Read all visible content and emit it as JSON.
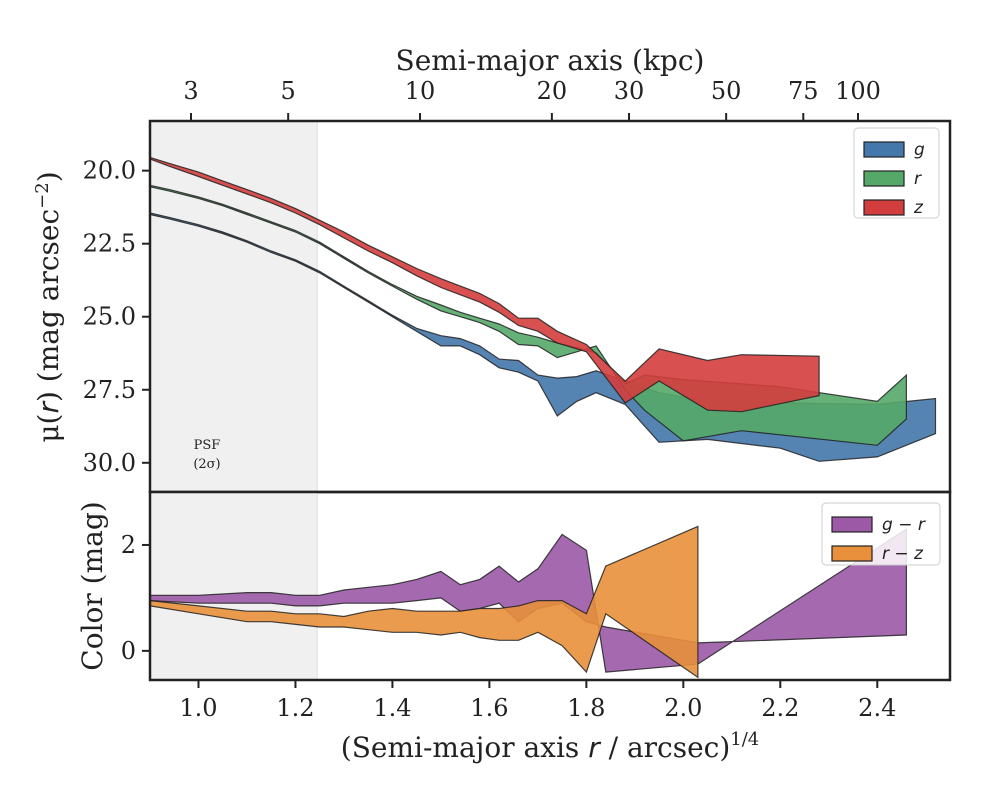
{
  "chart_data": [
    {
      "type": "area",
      "panel": "surface-brightness",
      "ylabel_parts": [
        "μ(",
        "r",
        ") (mag arcsec",
        "−2",
        ")"
      ],
      "xlabel_top": "Semi-major axis (kpc)",
      "ylim": [
        31.0,
        18.3
      ],
      "y_inverted": true,
      "xlim": [
        0.9,
        2.55
      ],
      "yticks": [
        "20.0",
        "22.5",
        "25.0",
        "27.5",
        "30.0"
      ],
      "ytick_values": [
        20.0,
        22.5,
        25.0,
        27.5,
        30.0
      ],
      "top_xticks": [
        "3",
        "5",
        "10",
        "20",
        "30",
        "50",
        "75",
        "100"
      ],
      "top_xtick_values": [
        3,
        5,
        10,
        20,
        30,
        50,
        75,
        100
      ],
      "psf_shade_upto": 1.245,
      "psf_label": [
        "PSF",
        "(2σ)"
      ],
      "legend": {
        "placement": "top-right",
        "entries": [
          "g",
          "r",
          "z"
        ]
      },
      "series": [
        {
          "name": "g",
          "color": "#4477aa",
          "upper": [
            [
              0.9,
              21.45
            ],
            [
              0.94,
              21.6
            ],
            [
              1.0,
              21.85
            ],
            [
              1.05,
              22.1
            ],
            [
              1.1,
              22.4
            ],
            [
              1.15,
              22.75
            ],
            [
              1.2,
              23.05
            ],
            [
              1.25,
              23.45
            ],
            [
              1.3,
              23.95
            ],
            [
              1.35,
              24.45
            ],
            [
              1.4,
              24.95
            ],
            [
              1.45,
              25.4
            ],
            [
              1.5,
              25.65
            ],
            [
              1.54,
              25.75
            ],
            [
              1.58,
              26.0
            ],
            [
              1.62,
              26.45
            ],
            [
              1.66,
              26.5
            ],
            [
              1.7,
              27.0
            ],
            [
              1.74,
              27.1
            ],
            [
              1.78,
              27.05
            ],
            [
              1.82,
              26.85
            ],
            [
              1.88,
              27.2
            ],
            [
              1.95,
              27.6
            ],
            [
              2.05,
              27.9
            ],
            [
              2.2,
              27.95
            ],
            [
              2.4,
              28.0
            ],
            [
              2.52,
              27.8
            ]
          ],
          "lower": [
            [
              0.9,
              21.5
            ],
            [
              0.94,
              21.65
            ],
            [
              1.0,
              21.9
            ],
            [
              1.05,
              22.15
            ],
            [
              1.1,
              22.45
            ],
            [
              1.15,
              22.8
            ],
            [
              1.2,
              23.1
            ],
            [
              1.25,
              23.5
            ],
            [
              1.3,
              24.0
            ],
            [
              1.35,
              24.5
            ],
            [
              1.4,
              25.0
            ],
            [
              1.45,
              25.5
            ],
            [
              1.5,
              26.0
            ],
            [
              1.54,
              26.0
            ],
            [
              1.58,
              26.3
            ],
            [
              1.62,
              26.75
            ],
            [
              1.66,
              26.9
            ],
            [
              1.7,
              27.2
            ],
            [
              1.74,
              28.4
            ],
            [
              1.78,
              27.9
            ],
            [
              1.82,
              27.6
            ],
            [
              1.88,
              28.0
            ],
            [
              1.95,
              29.3
            ],
            [
              2.05,
              29.2
            ],
            [
              2.2,
              29.5
            ],
            [
              2.28,
              29.95
            ],
            [
              2.4,
              29.8
            ],
            [
              2.52,
              29.0
            ]
          ]
        },
        {
          "name": "r",
          "color": "#55a868",
          "upper": [
            [
              0.9,
              20.5
            ],
            [
              0.94,
              20.65
            ],
            [
              1.0,
              20.9
            ],
            [
              1.05,
              21.15
            ],
            [
              1.1,
              21.45
            ],
            [
              1.15,
              21.75
            ],
            [
              1.2,
              22.05
            ],
            [
              1.25,
              22.45
            ],
            [
              1.3,
              22.95
            ],
            [
              1.35,
              23.45
            ],
            [
              1.4,
              23.9
            ],
            [
              1.45,
              24.3
            ],
            [
              1.5,
              24.6
            ],
            [
              1.54,
              24.85
            ],
            [
              1.58,
              25.05
            ],
            [
              1.62,
              25.25
            ],
            [
              1.66,
              25.55
            ],
            [
              1.7,
              25.7
            ],
            [
              1.74,
              25.9
            ],
            [
              1.78,
              26.05
            ],
            [
              1.82,
              26.25
            ],
            [
              1.88,
              27.3
            ],
            [
              1.92,
              27.0
            ],
            [
              2.0,
              27.15
            ],
            [
              2.2,
              27.4
            ],
            [
              2.4,
              27.9
            ],
            [
              2.46,
              27.0
            ]
          ],
          "lower": [
            [
              0.9,
              20.55
            ],
            [
              0.94,
              20.7
            ],
            [
              1.0,
              20.95
            ],
            [
              1.05,
              21.2
            ],
            [
              1.1,
              21.5
            ],
            [
              1.15,
              21.8
            ],
            [
              1.2,
              22.1
            ],
            [
              1.25,
              22.5
            ],
            [
              1.3,
              23.0
            ],
            [
              1.35,
              23.5
            ],
            [
              1.4,
              23.95
            ],
            [
              1.45,
              24.4
            ],
            [
              1.5,
              24.8
            ],
            [
              1.54,
              25.0
            ],
            [
              1.58,
              25.2
            ],
            [
              1.62,
              25.5
            ],
            [
              1.66,
              25.95
            ],
            [
              1.7,
              26.0
            ],
            [
              1.74,
              26.4
            ],
            [
              1.78,
              26.2
            ],
            [
              1.82,
              26.0
            ],
            [
              1.88,
              27.5
            ],
            [
              1.92,
              28.2
            ],
            [
              2.0,
              29.25
            ],
            [
              2.12,
              28.9
            ],
            [
              2.4,
              29.4
            ],
            [
              2.46,
              28.5
            ]
          ]
        },
        {
          "name": "z",
          "color": "#d43d3d",
          "upper": [
            [
              0.9,
              19.55
            ],
            [
              0.94,
              19.75
            ],
            [
              1.0,
              20.05
            ],
            [
              1.05,
              20.35
            ],
            [
              1.1,
              20.65
            ],
            [
              1.15,
              20.95
            ],
            [
              1.2,
              21.3
            ],
            [
              1.25,
              21.7
            ],
            [
              1.3,
              22.1
            ],
            [
              1.35,
              22.55
            ],
            [
              1.4,
              22.95
            ],
            [
              1.45,
              23.35
            ],
            [
              1.5,
              23.7
            ],
            [
              1.54,
              23.95
            ],
            [
              1.58,
              24.2
            ],
            [
              1.62,
              24.55
            ],
            [
              1.66,
              25.05
            ],
            [
              1.7,
              25.05
            ],
            [
              1.74,
              25.5
            ],
            [
              1.8,
              25.95
            ],
            [
              1.88,
              27.2
            ],
            [
              1.95,
              26.1
            ],
            [
              2.05,
              26.5
            ],
            [
              2.12,
              26.3
            ],
            [
              2.28,
              26.35
            ]
          ],
          "lower": [
            [
              0.9,
              19.6
            ],
            [
              0.94,
              19.85
            ],
            [
              1.0,
              20.2
            ],
            [
              1.05,
              20.5
            ],
            [
              1.1,
              20.8
            ],
            [
              1.15,
              21.1
            ],
            [
              1.2,
              21.45
            ],
            [
              1.25,
              21.85
            ],
            [
              1.3,
              22.3
            ],
            [
              1.35,
              22.75
            ],
            [
              1.4,
              23.15
            ],
            [
              1.45,
              23.6
            ],
            [
              1.5,
              24.0
            ],
            [
              1.54,
              24.25
            ],
            [
              1.58,
              24.5
            ],
            [
              1.62,
              24.85
            ],
            [
              1.66,
              25.3
            ],
            [
              1.7,
              25.5
            ],
            [
              1.74,
              25.9
            ],
            [
              1.8,
              26.2
            ],
            [
              1.88,
              27.95
            ],
            [
              1.95,
              27.2
            ],
            [
              2.05,
              28.2
            ],
            [
              2.12,
              28.25
            ],
            [
              2.28,
              27.7
            ]
          ]
        }
      ]
    },
    {
      "type": "area",
      "panel": "color",
      "ylabel": "Color (mag)",
      "xlabel_parts": [
        "(Semi-major axis ",
        "r",
        " / arcsec)",
        "1/4"
      ],
      "xlim": [
        0.9,
        2.55
      ],
      "ylim": [
        -0.55,
        3.0
      ],
      "yticks": [
        "0",
        "2"
      ],
      "ytick_values": [
        0,
        2
      ],
      "xticks": [
        "1.0",
        "1.2",
        "1.4",
        "1.6",
        "1.8",
        "2.0",
        "2.2",
        "2.4"
      ],
      "xtick_values": [
        1.0,
        1.2,
        1.4,
        1.6,
        1.8,
        2.0,
        2.2,
        2.4
      ],
      "legend": {
        "placement": "top-right",
        "entries": [
          "g − r",
          "r − z"
        ]
      },
      "series": [
        {
          "name": "g − r",
          "color": "#9b59a6",
          "upper": [
            [
              0.9,
              1.05
            ],
            [
              1.0,
              1.05
            ],
            [
              1.1,
              1.1
            ],
            [
              1.15,
              1.1
            ],
            [
              1.2,
              1.05
            ],
            [
              1.25,
              1.05
            ],
            [
              1.3,
              1.15
            ],
            [
              1.35,
              1.2
            ],
            [
              1.4,
              1.25
            ],
            [
              1.45,
              1.35
            ],
            [
              1.5,
              1.5
            ],
            [
              1.54,
              1.25
            ],
            [
              1.58,
              1.35
            ],
            [
              1.62,
              1.6
            ],
            [
              1.66,
              1.3
            ],
            [
              1.7,
              1.55
            ],
            [
              1.75,
              2.2
            ],
            [
              1.8,
              1.9
            ],
            [
              1.84,
              -0.4
            ],
            [
              2.03,
              -0.25
            ],
            [
              2.46,
              2.3
            ]
          ],
          "lower": [
            [
              0.9,
              0.95
            ],
            [
              1.0,
              0.9
            ],
            [
              1.1,
              0.9
            ],
            [
              1.15,
              0.9
            ],
            [
              1.2,
              0.85
            ],
            [
              1.25,
              0.85
            ],
            [
              1.3,
              0.9
            ],
            [
              1.35,
              0.9
            ],
            [
              1.4,
              0.9
            ],
            [
              1.45,
              0.95
            ],
            [
              1.5,
              1.0
            ],
            [
              1.54,
              0.75
            ],
            [
              1.58,
              0.8
            ],
            [
              1.62,
              0.9
            ],
            [
              1.66,
              0.55
            ],
            [
              1.7,
              0.8
            ],
            [
              1.75,
              0.9
            ],
            [
              1.8,
              0.55
            ],
            [
              1.84,
              0.45
            ],
            [
              2.03,
              0.15
            ],
            [
              2.46,
              0.3
            ]
          ]
        },
        {
          "name": "r − z",
          "color": "#e8903b",
          "upper": [
            [
              0.9,
              0.95
            ],
            [
              1.0,
              0.85
            ],
            [
              1.1,
              0.75
            ],
            [
              1.15,
              0.75
            ],
            [
              1.2,
              0.7
            ],
            [
              1.25,
              0.7
            ],
            [
              1.3,
              0.65
            ],
            [
              1.35,
              0.75
            ],
            [
              1.4,
              0.8
            ],
            [
              1.45,
              0.75
            ],
            [
              1.5,
              0.75
            ],
            [
              1.54,
              0.75
            ],
            [
              1.58,
              0.8
            ],
            [
              1.62,
              0.8
            ],
            [
              1.66,
              0.85
            ],
            [
              1.7,
              0.95
            ],
            [
              1.75,
              0.95
            ],
            [
              1.8,
              0.7
            ],
            [
              1.84,
              1.6
            ],
            [
              2.03,
              2.35
            ]
          ],
          "lower": [
            [
              0.9,
              0.85
            ],
            [
              1.0,
              0.7
            ],
            [
              1.1,
              0.55
            ],
            [
              1.15,
              0.55
            ],
            [
              1.2,
              0.5
            ],
            [
              1.25,
              0.45
            ],
            [
              1.3,
              0.45
            ],
            [
              1.35,
              0.4
            ],
            [
              1.4,
              0.35
            ],
            [
              1.45,
              0.35
            ],
            [
              1.5,
              0.3
            ],
            [
              1.54,
              0.35
            ],
            [
              1.58,
              0.25
            ],
            [
              1.62,
              0.2
            ],
            [
              1.66,
              0.2
            ],
            [
              1.7,
              0.35
            ],
            [
              1.75,
              0.1
            ],
            [
              1.8,
              -0.4
            ],
            [
              1.84,
              0.7
            ],
            [
              2.03,
              -0.5
            ]
          ]
        }
      ]
    }
  ]
}
